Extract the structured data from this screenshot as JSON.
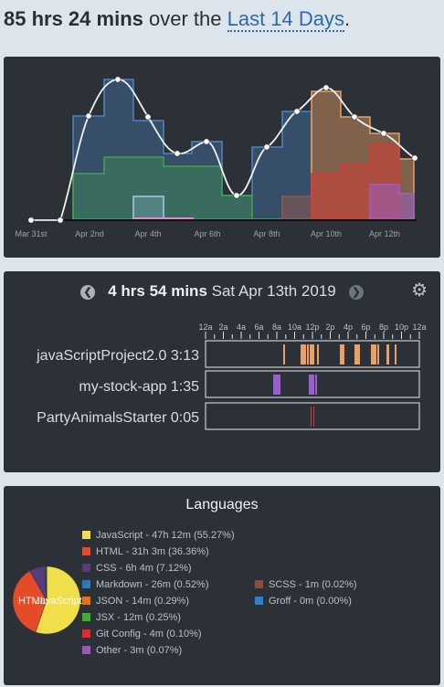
{
  "header": {
    "total": "85 hrs 24 mins",
    "connector": " over the ",
    "range": "Last 14 Days",
    "period": "."
  },
  "activity_chart": {
    "x_labels": [
      "Mar 31st",
      "Apr 2nd",
      "Apr 4th",
      "Apr 6th",
      "Apr 8th",
      "Apr 10th",
      "Apr 12th"
    ],
    "colors": {
      "blue": "#4a86c5",
      "green": "#3fa34d",
      "orange": "#e8a066",
      "red": "#d53a34",
      "purple": "#9a5fcc",
      "brown": "#8e5a4e",
      "pink": "#e08ad0",
      "lightblue": "#a8c8e8"
    }
  },
  "day_view": {
    "hours": "4 hrs 54 mins",
    "date": "Sat Apr 13th 2019",
    "prev_icon": "chevron-left-circle",
    "next_icon": "chevron-right-circle",
    "settings_icon": "gear",
    "hour_labels": [
      "12a",
      "2a",
      "4a",
      "6a",
      "8a",
      "10a",
      "12p",
      "2p",
      "4p",
      "6p",
      "8p",
      "10p",
      "12a"
    ],
    "projects": [
      {
        "name": "javaScriptProject2.0",
        "time": "3:13",
        "color": "#e8a066"
      },
      {
        "name": "my-stock-app",
        "time": "1:35",
        "color": "#9a5fcc"
      },
      {
        "name": "PartyAnimalsStarter",
        "time": "0:05",
        "color": "#d53a34"
      }
    ]
  },
  "languages": {
    "title": "Languages",
    "pie_labels": [
      "HTML",
      "JavaScript"
    ],
    "items": [
      {
        "label": "JavaScript - 47h 12m (55.27%)",
        "color": "#f0de4a",
        "pct": 55.27
      },
      {
        "label": "HTML - 31h 3m (36.36%)",
        "color": "#e34c26",
        "pct": 36.36
      },
      {
        "label": "CSS - 6h 4m (7.12%)",
        "color": "#563d7c",
        "pct": 7.12
      },
      {
        "label": "Markdown - 26m (0.52%)",
        "color": "#2b7bb9",
        "pct": 0.52
      },
      {
        "label": "JSON - 14m (0.29%)",
        "color": "#e8720c",
        "pct": 0.29
      },
      {
        "label": "JSX - 12m (0.25%)",
        "color": "#3fae2a",
        "pct": 0.25
      },
      {
        "label": "Git Config - 4m (0.10%)",
        "color": "#e02c2c",
        "pct": 0.1
      },
      {
        "label": "Other - 3m (0.07%)",
        "color": "#9b59b6",
        "pct": 0.07
      },
      {
        "label": "SCSS - 1m (0.02%)",
        "color": "#8a4d42",
        "pct": 0.02
      },
      {
        "label": "Groff - 0m (0.00%)",
        "color": "#2f7fd0",
        "pct": 0.0
      }
    ]
  }
}
